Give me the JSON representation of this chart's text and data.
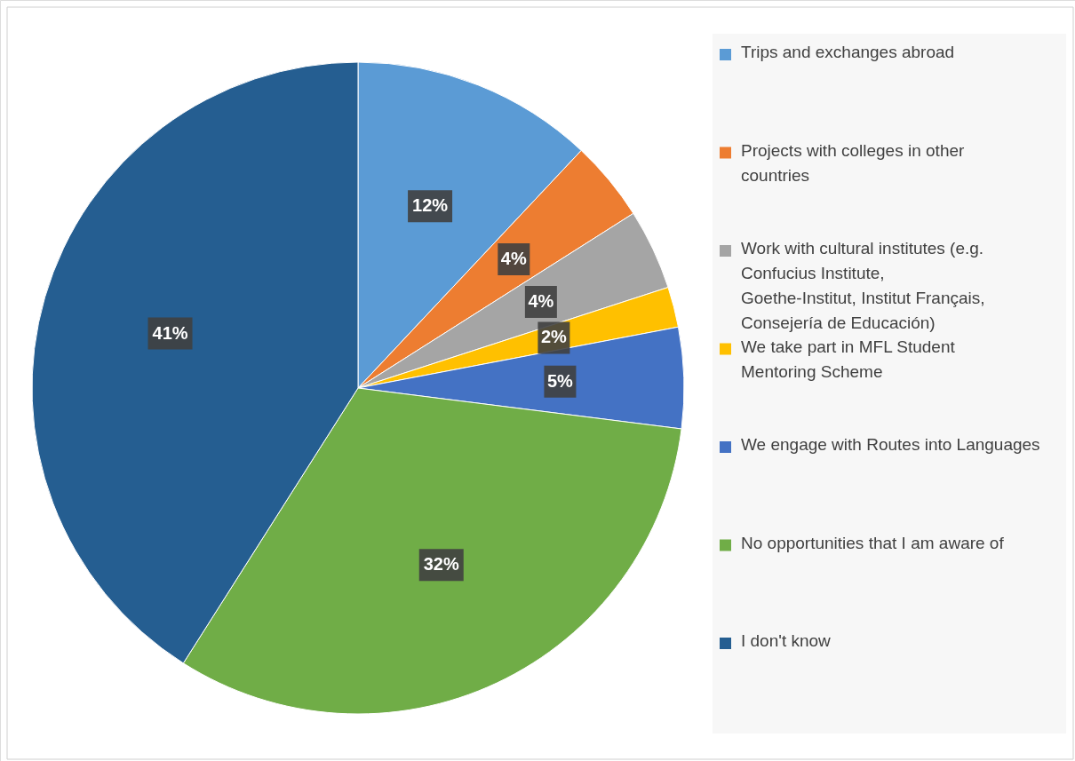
{
  "chart_data": {
    "type": "pie",
    "categories": [
      "Trips and exchanges abroad",
      "Projects with colleges in other countries",
      "Work with cultural institutes (e.g. Confucius Institute, Goethe-Institut, Institut Français, Consejería de Educación)",
      "We take part in MFL Student Mentoring Scheme",
      "We engage with Routes into Languages",
      "No opportunities that I am aware of",
      "I don't know"
    ],
    "values": [
      12,
      4,
      4,
      2,
      5,
      32,
      41
    ],
    "value_labels": [
      "12%",
      "4%",
      "4%",
      "2%",
      "5%",
      "32%",
      "41%"
    ],
    "colors": [
      "#5b9bd5",
      "#ed7d31",
      "#a5a5a5",
      "#ffc000",
      "#4472c4",
      "#70ad47",
      "#255e91"
    ],
    "legend": "right"
  }
}
